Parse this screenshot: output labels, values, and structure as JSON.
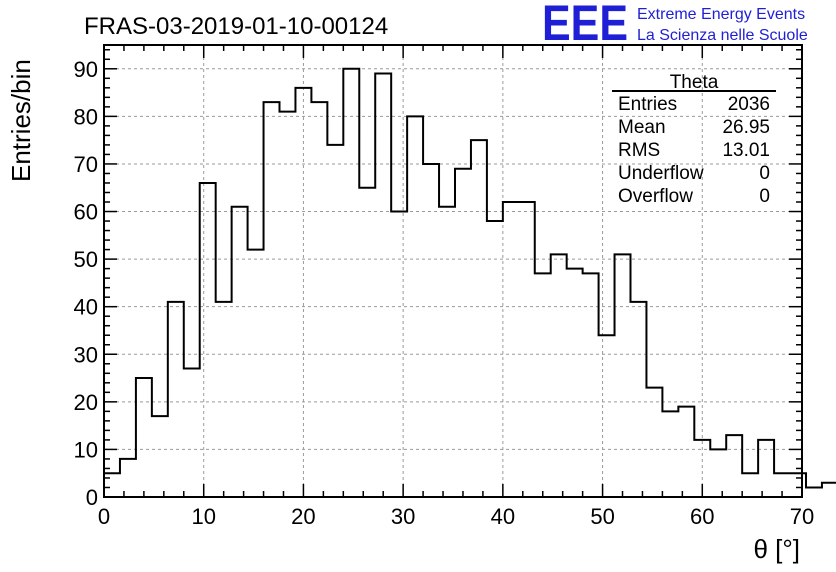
{
  "chart_data": {
    "type": "bar",
    "title": "FRAS-03-2019-01-10-00124",
    "xlabel": "θ [°]",
    "ylabel": "Entries/bin",
    "xlim": [
      0,
      70
    ],
    "ylim": [
      0,
      95
    ],
    "x_ticks": [
      0,
      10,
      20,
      30,
      40,
      50,
      60,
      70
    ],
    "y_ticks": [
      0,
      10,
      20,
      30,
      40,
      50,
      60,
      70,
      80,
      90
    ],
    "grid": true,
    "histogram_style": "step",
    "bin_width": 1.6,
    "bin_edges_start": 0,
    "values": [
      5,
      8,
      25,
      17,
      41,
      27,
      66,
      41,
      61,
      52,
      83,
      81,
      86,
      83,
      74,
      90,
      65,
      89,
      60,
      80,
      70,
      61,
      69,
      75,
      58,
      62,
      62,
      47,
      51,
      48,
      47,
      34,
      51,
      41,
      23,
      18,
      19,
      12,
      10,
      13,
      5,
      12,
      5,
      5,
      2,
      3
    ],
    "stats_box": {
      "title": "Theta",
      "rows": [
        {
          "label": "Entries",
          "value": "2036"
        },
        {
          "label": "Mean",
          "value": "26.95"
        },
        {
          "label": "RMS",
          "value": "13.01"
        },
        {
          "label": "Underflow",
          "value": "0"
        },
        {
          "label": "Overflow",
          "value": "0"
        }
      ]
    }
  },
  "logo": {
    "text": "EEE",
    "line1": "Extreme Energy Events",
    "line2": "La Scienza nelle Scuole"
  },
  "colors": {
    "histogram_line": "#000000",
    "grid": "#9a9a9a",
    "logo": "#1f1fd6"
  }
}
